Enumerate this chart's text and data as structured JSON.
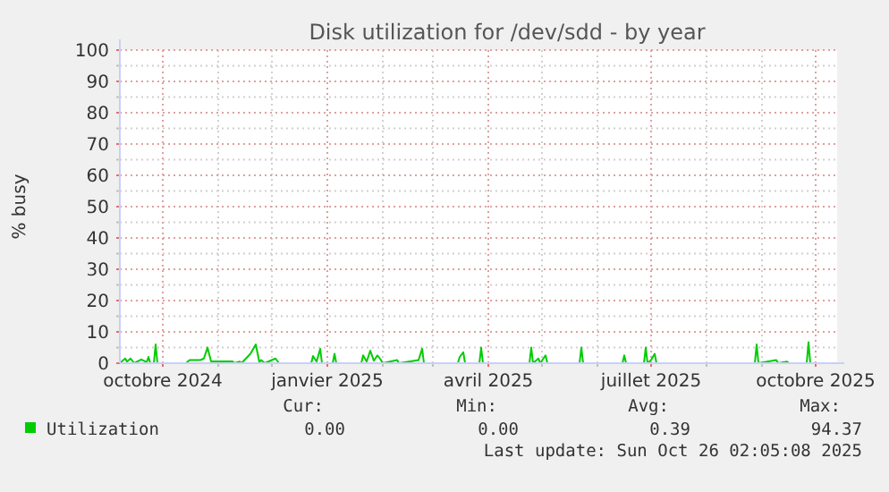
{
  "chart_data": {
    "type": "line",
    "title": "Disk utilization for /dev/sdd - by year",
    "ylabel": "% busy",
    "xlim": [
      "2024-09-07",
      "2025-10-13"
    ],
    "xticks": [
      {
        "value": "2024-10-01",
        "label": "octobre 2024"
      },
      {
        "value": "2024-11-01",
        "label": null
      },
      {
        "value": "2024-12-01",
        "label": null
      },
      {
        "value": "2025-01-01",
        "label": "janvier 2025"
      },
      {
        "value": "2025-02-01",
        "label": null
      },
      {
        "value": "2025-03-01",
        "label": null
      },
      {
        "value": "2025-04-01",
        "label": "avril 2025"
      },
      {
        "value": "2025-05-01",
        "label": null
      },
      {
        "value": "2025-06-01",
        "label": null
      },
      {
        "value": "2025-07-01",
        "label": "juillet 2025"
      },
      {
        "value": "2025-08-01",
        "label": null
      },
      {
        "value": "2025-09-01",
        "label": null
      },
      {
        "value": "2025-10-01",
        "label": "octobre 2025"
      }
    ],
    "ylim": [
      0,
      100
    ],
    "yticks": [
      0,
      {
        "value": 5,
        "label": null
      },
      10,
      {
        "value": 15,
        "label": null
      },
      20,
      {
        "value": 25,
        "label": null
      },
      30,
      {
        "value": 35,
        "label": null
      },
      40,
      {
        "value": 45,
        "label": null
      },
      50,
      {
        "value": 55,
        "label": null
      },
      60,
      {
        "value": 65,
        "label": null
      },
      70,
      {
        "value": 75,
        "label": null
      },
      80,
      {
        "value": 85,
        "label": null
      },
      90,
      {
        "value": 95,
        "label": null
      },
      100
    ],
    "grid": true,
    "legend": "bottom left",
    "marker": "none",
    "line_style": "solid",
    "series": [
      {
        "name": "Utilization",
        "color": "#00cc00",
        "x": [
          "2024-09-07",
          "2024-09-10",
          "2024-09-11",
          "2024-09-13",
          "2024-09-15",
          "2024-09-19",
          "2024-09-22",
          "2024-09-23",
          "2024-09-24",
          "2024-09-26",
          "2024-09-27",
          "2024-09-28",
          "2024-10-14",
          "2024-10-16",
          "2024-10-22",
          "2024-10-24",
          "2024-10-26",
          "2024-10-28",
          "2024-11-09",
          "2024-11-10",
          "2024-11-13",
          "2024-11-14",
          "2024-11-19",
          "2024-11-22",
          "2024-11-24",
          "2024-11-25",
          "2024-11-27",
          "2024-12-03",
          "2024-12-05",
          "2024-12-23",
          "2024-12-24",
          "2024-12-26",
          "2024-12-28",
          "2024-12-29",
          "2025-01-04",
          "2025-01-05",
          "2025-01-06",
          "2025-01-20",
          "2025-01-21",
          "2025-01-23",
          "2025-01-25",
          "2025-01-27",
          "2025-01-29",
          "2025-01-31",
          "2025-02-01",
          "2025-02-09",
          "2025-02-10",
          "2025-02-18",
          "2025-02-21",
          "2025-02-23",
          "2025-02-24",
          "2025-03-15",
          "2025-03-16",
          "2025-03-18",
          "2025-03-19",
          "2025-03-27",
          "2025-03-28",
          "2025-03-29",
          "2025-04-24",
          "2025-04-25",
          "2025-04-26",
          "2025-04-29",
          "2025-04-30",
          "2025-05-03",
          "2025-05-04",
          "2025-05-22",
          "2025-05-23",
          "2025-05-24",
          "2025-06-15",
          "2025-06-16",
          "2025-06-17",
          "2025-06-27",
          "2025-06-28",
          "2025-06-29",
          "2025-07-01",
          "2025-07-03",
          "2025-07-04",
          "2025-08-28",
          "2025-08-29",
          "2025-08-30",
          "2025-09-09",
          "2025-09-10",
          "2025-09-15",
          "2025-09-16",
          "2025-09-26",
          "2025-09-27",
          "2025-09-28",
          "2025-10-13"
        ],
        "values": [
          0,
          1.5,
          0.5,
          1.5,
          0,
          1.2,
          0.3,
          2,
          0,
          0,
          6,
          0,
          0,
          1,
          1,
          1.5,
          5,
          0.6,
          0.6,
          0,
          0.5,
          0,
          3,
          6,
          0.3,
          1,
          0,
          1.5,
          0,
          0,
          2.3,
          0.5,
          4.6,
          0,
          0,
          3,
          0,
          0,
          2.5,
          0.5,
          4,
          0.8,
          2.5,
          1,
          0,
          1,
          0,
          0.7,
          1,
          4.6,
          0,
          0,
          2,
          3.5,
          0,
          0,
          5,
          0,
          0,
          5,
          0,
          1.5,
          0,
          2.5,
          0,
          0,
          5,
          0,
          0,
          2.5,
          0,
          0,
          5,
          0,
          1,
          3,
          0,
          0,
          6,
          0,
          1,
          0,
          0.5,
          0,
          0,
          6.7,
          0,
          0
        ]
      }
    ],
    "annotations": [
      "Cur:",
      "Min:",
      "Avg:",
      "Max:",
      "0.00",
      "0.00",
      "0.39",
      "94.37",
      "Last update: Sun Oct 26 02:05:08 2025"
    ]
  }
}
